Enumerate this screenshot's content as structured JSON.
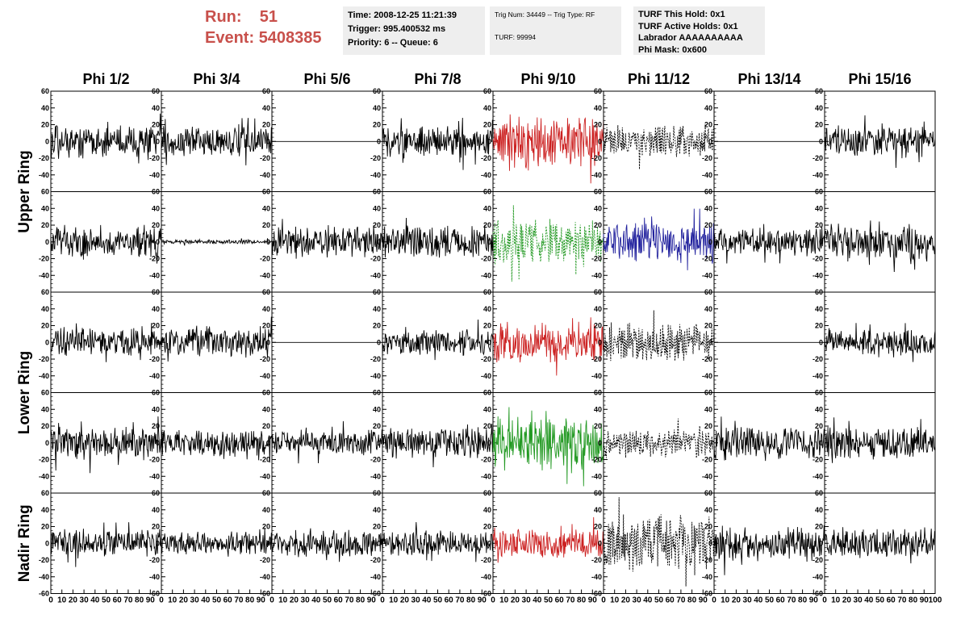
{
  "header": {
    "run_label": "Run:",
    "run_value": "51",
    "event_label": "Event:",
    "event_value": "5408385",
    "time": "Time: 2008-12-25 11:21:39",
    "trigger": "Trigger: 995.400532 ms",
    "priority": "Priority: 6 -- Queue: 6",
    "trig_num": "Trig Num: 34449 -- Trig Type: RF",
    "turf": "TURF: 99994",
    "turf_this_hold": "TURF This Hold: 0x1",
    "turf_active_holds": "TURF Active Holds: 0x1",
    "labrador": "Labrador AAAAAAAAAA",
    "phi_mask": "Phi Mask: 0x600"
  },
  "chart_data": {
    "type": "line",
    "columns": [
      "Phi 1/2",
      "Phi 3/4",
      "Phi 5/6",
      "Phi 7/8",
      "Phi 9/10",
      "Phi 11/12",
      "Phi 13/14",
      "Phi 15/16"
    ],
    "row_labels": [
      "Upper Ring",
      "Lower Ring",
      "Nadir Ring"
    ],
    "xlim": [
      0,
      100
    ],
    "ylim": [
      -60,
      60
    ],
    "y_ticks": [
      -60,
      -40,
      -20,
      0,
      20,
      40,
      60
    ],
    "x_ticks": [
      0,
      10,
      20,
      30,
      40,
      50,
      60,
      70,
      80,
      90,
      100
    ],
    "x_tick_labels": [
      "0",
      "10",
      "20",
      "30",
      "40",
      "50",
      "60",
      "70",
      "80",
      "90",
      "100"
    ],
    "colors": {
      "black": "#000000",
      "red": "#cc2222",
      "green": "#229922",
      "blue": "#22229e"
    },
    "panels": [
      [
        {
          "amp": 15,
          "color": "black",
          "style": "solid"
        },
        {
          "amp": 15,
          "color": "black",
          "style": "solid"
        },
        {
          "amp": 0,
          "color": "black",
          "style": "solid"
        },
        {
          "amp": 15,
          "color": "black",
          "style": "solid"
        },
        {
          "amp": 24,
          "color": "red",
          "style": "solid"
        },
        {
          "amp": 16,
          "color": "black",
          "style": "dashed"
        },
        {
          "amp": 0,
          "color": "black",
          "style": "solid"
        },
        {
          "amp": 15,
          "color": "black",
          "style": "solid"
        }
      ],
      [
        {
          "amp": 15,
          "color": "black",
          "style": "solid"
        },
        {
          "amp": 2,
          "color": "black",
          "style": "solid"
        },
        {
          "amp": 14,
          "color": "black",
          "style": "solid"
        },
        {
          "amp": 15,
          "color": "black",
          "style": "solid"
        },
        {
          "amp": 22,
          "color": "green",
          "style": "dashed"
        },
        {
          "amp": 18,
          "color": "blue",
          "style": "solid"
        },
        {
          "amp": 12,
          "color": "black",
          "style": "solid"
        },
        {
          "amp": 16,
          "color": "black",
          "style": "solid"
        }
      ],
      [
        {
          "amp": 13,
          "color": "black",
          "style": "solid"
        },
        {
          "amp": 15,
          "color": "black",
          "style": "solid"
        },
        {
          "amp": 0,
          "color": "black",
          "style": "solid"
        },
        {
          "amp": 12,
          "color": "black",
          "style": "solid"
        },
        {
          "amp": 18,
          "color": "red",
          "style": "solid"
        },
        {
          "amp": 18,
          "color": "black",
          "style": "dashed"
        },
        {
          "amp": 0,
          "color": "black",
          "style": "solid"
        },
        {
          "amp": 12,
          "color": "black",
          "style": "solid"
        }
      ],
      [
        {
          "amp": 15,
          "color": "black",
          "style": "solid"
        },
        {
          "amp": 13,
          "color": "black",
          "style": "solid"
        },
        {
          "amp": 12,
          "color": "black",
          "style": "solid"
        },
        {
          "amp": 14,
          "color": "black",
          "style": "solid"
        },
        {
          "amp": 25,
          "color": "green",
          "style": "solid"
        },
        {
          "amp": 14,
          "color": "black",
          "style": "dashed"
        },
        {
          "amp": 16,
          "color": "black",
          "style": "solid"
        },
        {
          "amp": 15,
          "color": "black",
          "style": "solid"
        }
      ],
      [
        {
          "amp": 13,
          "color": "black",
          "style": "solid"
        },
        {
          "amp": 10,
          "color": "black",
          "style": "solid"
        },
        {
          "amp": 12,
          "color": "black",
          "style": "solid"
        },
        {
          "amp": 12,
          "color": "black",
          "style": "solid"
        },
        {
          "amp": 14,
          "color": "red",
          "style": "solid"
        },
        {
          "amp": 25,
          "color": "black",
          "style": "dashed"
        },
        {
          "amp": 16,
          "color": "black",
          "style": "solid"
        },
        {
          "amp": 13,
          "color": "black",
          "style": "solid"
        }
      ]
    ]
  }
}
